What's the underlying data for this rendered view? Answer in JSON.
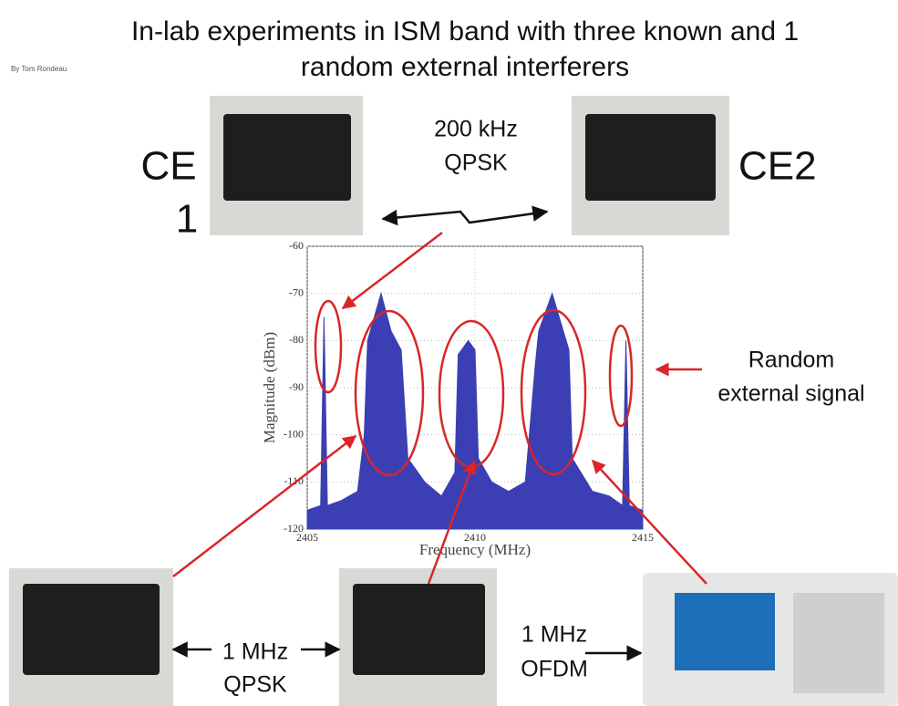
{
  "header": {
    "title": [
      "In-lab experiments in ISM band with three known and 1",
      "random external interferers"
    ],
    "byline": "By Tom Rondeau"
  },
  "labels": {
    "ce1": [
      "CE",
      "1"
    ],
    "ce2": "CE2",
    "link_top": [
      "200 kHz",
      "QPSK"
    ],
    "random": [
      "Random",
      "external signal"
    ],
    "link_bottom": [
      "1 MHz",
      "QPSK"
    ],
    "ofdm": [
      "1 MHz",
      "OFDM"
    ]
  },
  "chart_data": {
    "type": "area",
    "xlabel": "Frequency (MHz)",
    "ylabel": "Magnitude (dBm)",
    "x": [
      2405,
      2405.4,
      2405.5,
      2405.6,
      2406,
      2406.5,
      2406.7,
      2406.8,
      2407.2,
      2407.5,
      2407.8,
      2408,
      2408.5,
      2409,
      2409.4,
      2409.5,
      2409.8,
      2410,
      2410.1,
      2410.5,
      2411,
      2411.5,
      2411.8,
      2411.9,
      2412.3,
      2412.8,
      2412.9,
      2413.5,
      2414,
      2414.4,
      2414.5,
      2414.6,
      2415
    ],
    "values": [
      -116,
      -115,
      -75,
      -115,
      -114,
      -112,
      -100,
      -80,
      -70,
      -78,
      -82,
      -105,
      -110,
      -113,
      -108,
      -83,
      -80,
      -82,
      -105,
      -110,
      -112,
      -110,
      -85,
      -78,
      -70,
      -82,
      -105,
      -112,
      -113,
      -115,
      -80,
      -115,
      -116
    ],
    "color": "#3b3fb3",
    "xlim": [
      2405,
      2415
    ],
    "ylim": [
      -120,
      -60
    ],
    "xticks": [
      2405,
      2410,
      2415
    ],
    "yticks": [
      -60,
      -70,
      -80,
      -90,
      -100,
      -110,
      -120
    ],
    "grid": true
  }
}
